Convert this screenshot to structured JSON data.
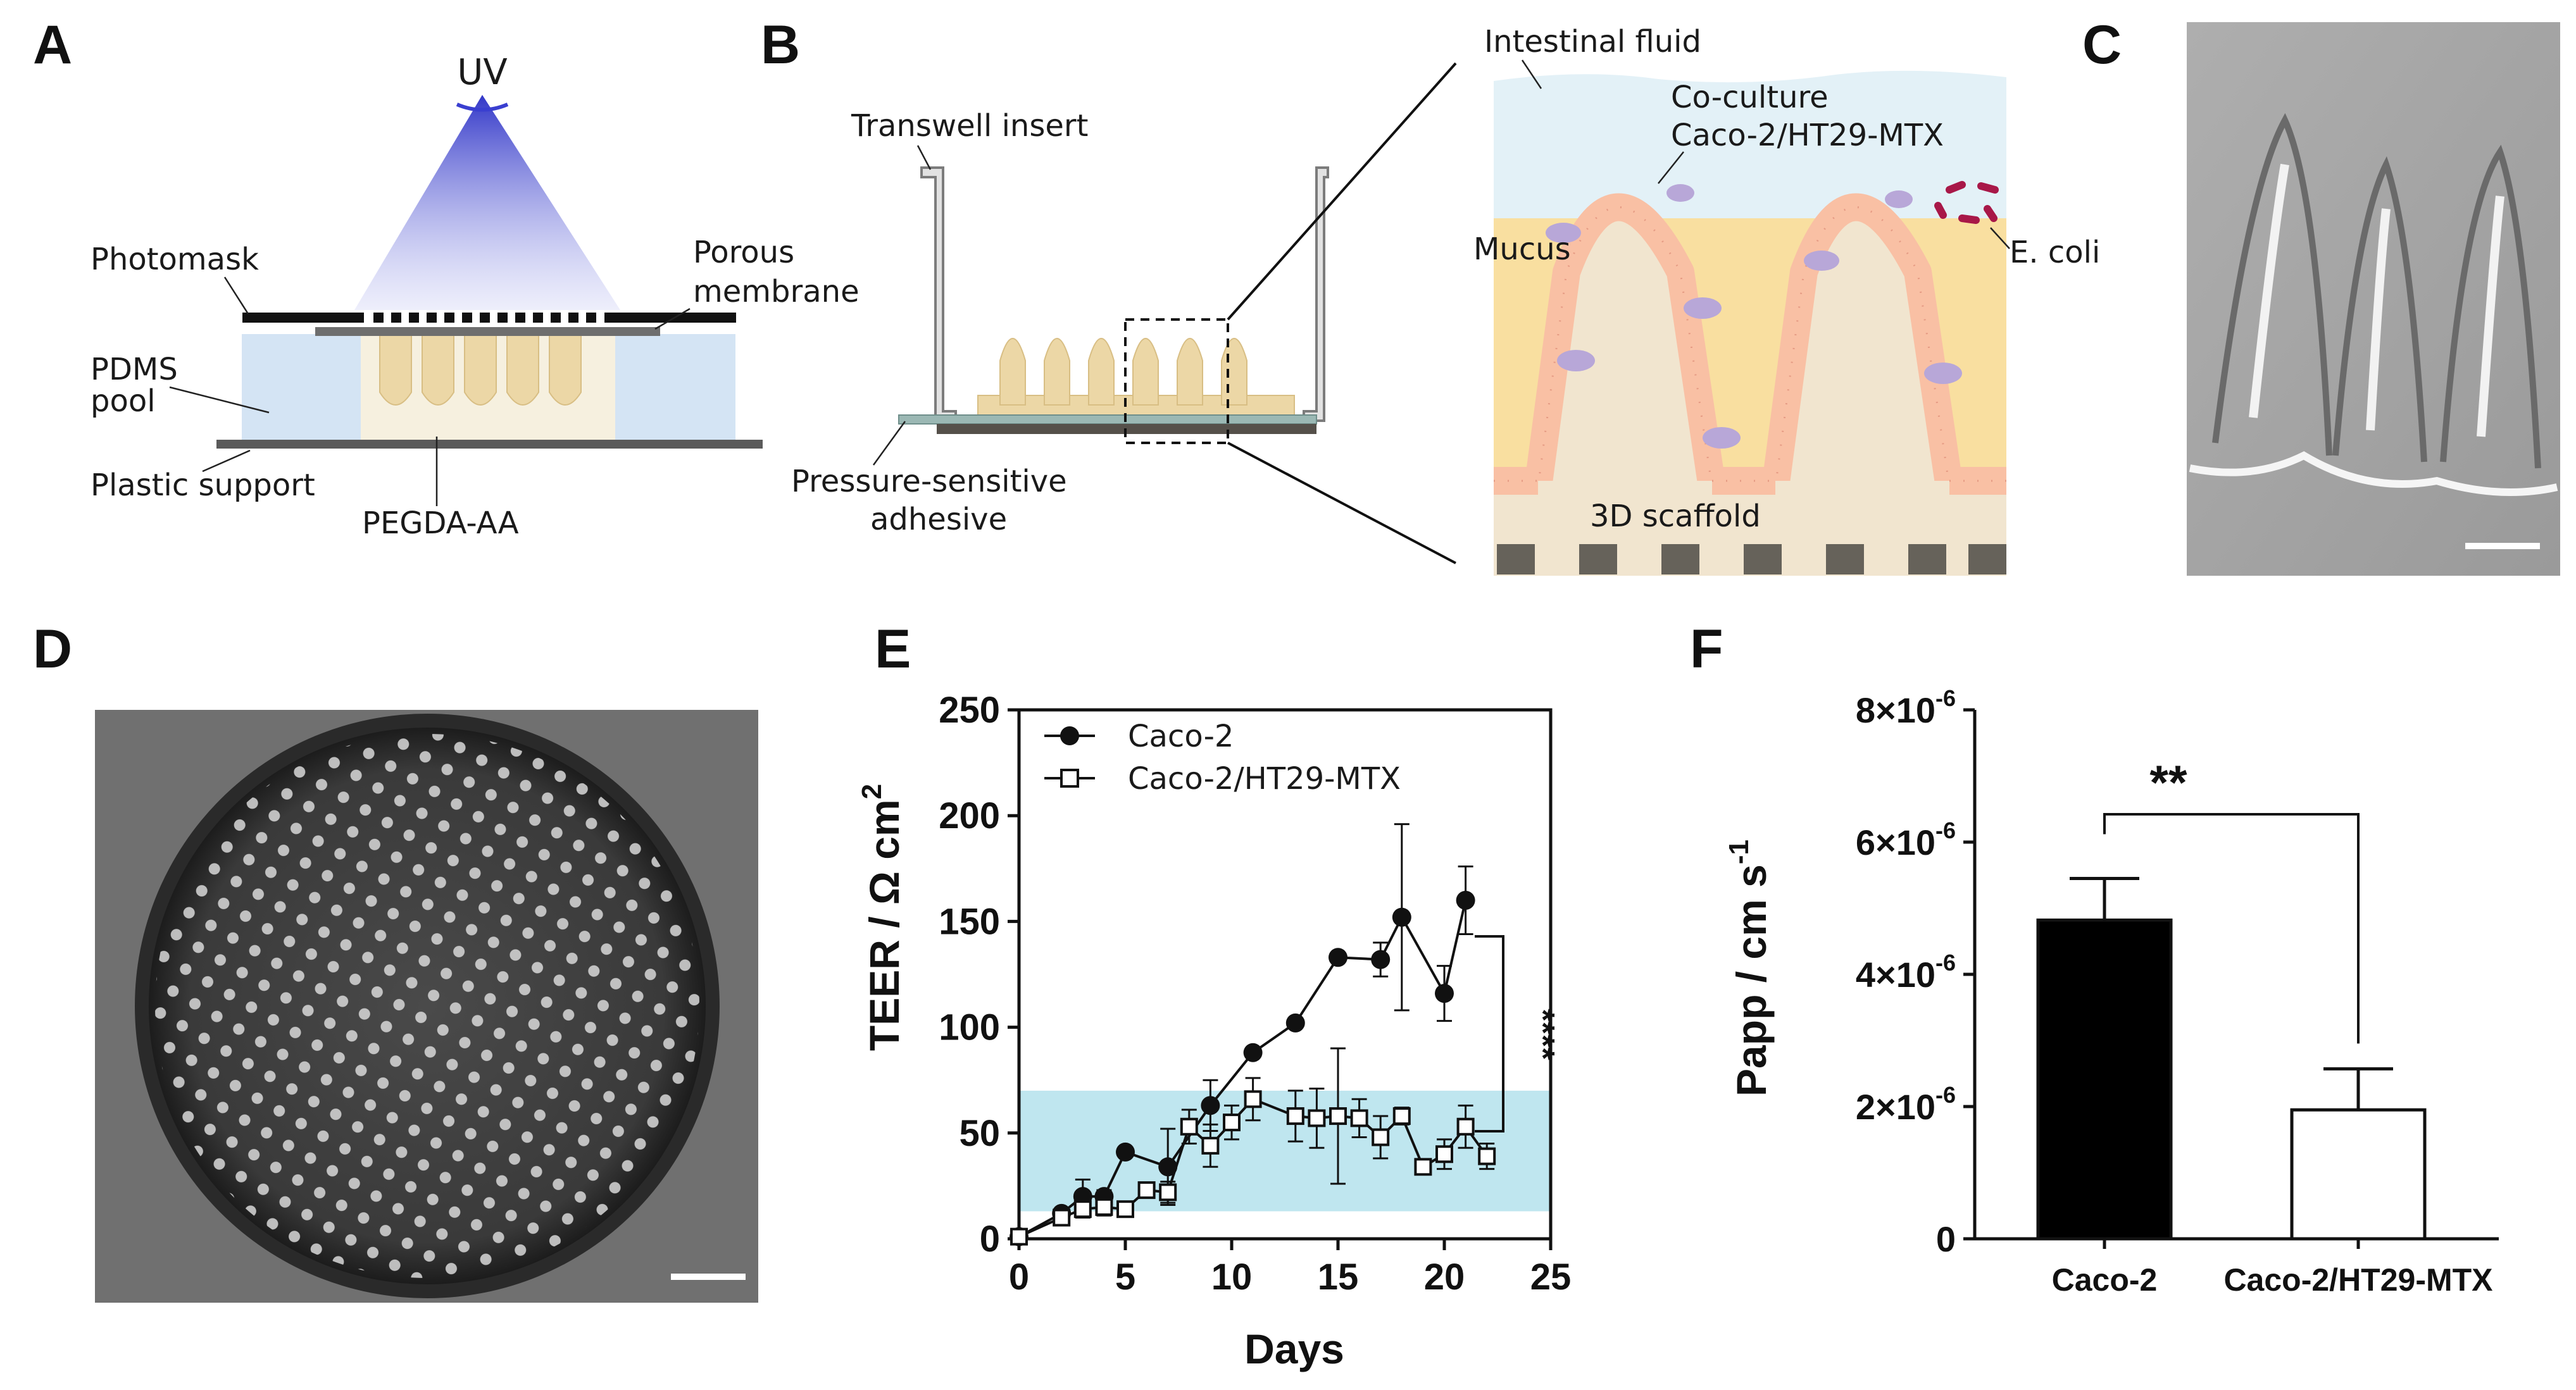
{
  "colors": {
    "uv_top": "#3a3fd0",
    "pdms": "#d4e4f4",
    "scaffold": "#ecd7a6",
    "mucus": "#f9dfa0",
    "fluid": "#e3f1f7",
    "cell": "#f9c0a4",
    "goblet": "#b8a7d8",
    "ecoli": "#a81848",
    "teer_band": "#bfe6ef"
  },
  "panels": {
    "A": {
      "letter": "A",
      "uv": "UV",
      "photomask": "Photomask",
      "porous": [
        "Porous",
        "membrane"
      ],
      "pdms": [
        "PDMS",
        "pool"
      ],
      "plastic": "Plastic support",
      "pegda": "PEGDA-AA"
    },
    "B": {
      "letter": "B",
      "transwell": "Transwell insert",
      "adhesive": [
        "Pressure-sensitive",
        "adhesive"
      ],
      "fluid": "Intestinal fluid",
      "coculture": [
        "Co-culture",
        "Caco-2/HT29-MTX"
      ],
      "mucus": "Mucus",
      "ecoli": "E. coli",
      "scaffold3d": "3D scaffold"
    },
    "C": {
      "letter": "C"
    },
    "D": {
      "letter": "D"
    },
    "E": {
      "letter": "E"
    },
    "F": {
      "letter": "F"
    }
  },
  "chart_data": [
    {
      "id": "E",
      "type": "line",
      "xlabel": "Days",
      "ylabel": "TEER / Ω cm",
      "ylabel_sup": "2",
      "xlim": [
        0,
        25
      ],
      "ylim": [
        0,
        250
      ],
      "xticks": [
        "0",
        "5",
        "10",
        "15",
        "20",
        "25"
      ],
      "yticks": [
        "0",
        "50",
        "100",
        "150",
        "200",
        "250"
      ],
      "legend_position": "top-left",
      "significance": "****",
      "band": [
        13,
        70
      ],
      "series": [
        {
          "name": "Caco-2",
          "marker": "filled-circle",
          "x": [
            0,
            2,
            3,
            4,
            5,
            7,
            9,
            11,
            13,
            15,
            17,
            18,
            20,
            21
          ],
          "y": [
            1,
            12,
            20,
            20,
            41,
            34,
            63,
            88,
            102,
            133,
            132,
            152,
            116,
            160
          ],
          "err": [
            0,
            2,
            8,
            3,
            0,
            18,
            12,
            0,
            0,
            0,
            8,
            44,
            13,
            16
          ]
        },
        {
          "name": "Caco-2/HT29-MTX",
          "marker": "open-square",
          "x": [
            0,
            2,
            3,
            4,
            5,
            6,
            7,
            8,
            9,
            10,
            11,
            13,
            14,
            15,
            16,
            17,
            18,
            19,
            20,
            21,
            22
          ],
          "y": [
            1,
            10,
            14,
            15,
            14,
            23,
            22,
            53,
            44,
            55,
            66,
            58,
            57,
            58,
            57,
            48,
            58,
            34,
            40,
            53,
            39
          ],
          "err": [
            0,
            3,
            4,
            4,
            2,
            3,
            5,
            8,
            10,
            8,
            10,
            12,
            14,
            32,
            9,
            10,
            4,
            2,
            7,
            10,
            6
          ]
        }
      ]
    },
    {
      "id": "F",
      "type": "bar",
      "ylabel": "Papp / cm s",
      "ylabel_sup": "-1",
      "categories": [
        "Caco-2",
        "Caco-2/HT29-MTX"
      ],
      "values": [
        4.82e-06,
        1.95e-06
      ],
      "err": [
        6.3e-07,
        6.2e-07
      ],
      "ylim": [
        0,
        8e-06
      ],
      "yticks": [
        {
          "value": 0,
          "label": "0",
          "exp": ""
        },
        {
          "value": 2e-06,
          "label": "2×10",
          "exp": "-6"
        },
        {
          "value": 4e-06,
          "label": "4×10",
          "exp": "-6"
        },
        {
          "value": 6e-06,
          "label": "6×10",
          "exp": "-6"
        },
        {
          "value": 8e-06,
          "label": "8×10",
          "exp": "-6"
        }
      ],
      "significance": "**"
    }
  ]
}
